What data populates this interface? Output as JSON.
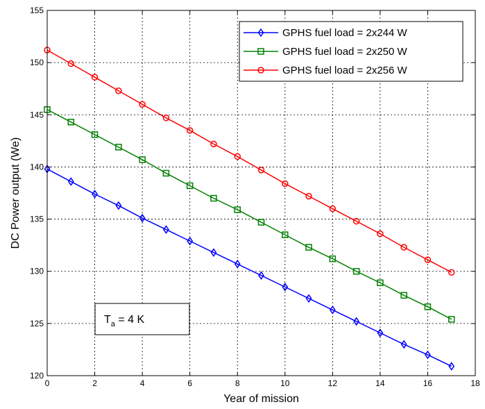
{
  "chart_data": {
    "type": "line",
    "xlabel": "Year of mission",
    "ylabel": "DC Power output (We)",
    "xlim": [
      0,
      18
    ],
    "ylim": [
      120,
      155
    ],
    "xticks": [
      0,
      2,
      4,
      6,
      8,
      10,
      12,
      14,
      16,
      18
    ],
    "yticks": [
      120,
      125,
      130,
      135,
      140,
      145,
      150,
      155
    ],
    "grid": true,
    "legend_position": "top-right",
    "x": [
      0,
      1,
      2,
      3,
      4,
      5,
      6,
      7,
      8,
      9,
      10,
      11,
      12,
      13,
      14,
      15,
      16,
      17
    ],
    "series": [
      {
        "name": "GPHS fuel load = 2x244 W",
        "color": "#0000ff",
        "marker": "diamond",
        "values": [
          139.8,
          138.6,
          137.4,
          136.3,
          135.1,
          134.0,
          132.9,
          131.8,
          130.7,
          129.6,
          128.5,
          127.4,
          126.3,
          125.2,
          124.1,
          123.0,
          122.0,
          120.9
        ]
      },
      {
        "name": "GPHS fuel load = 2x250 W",
        "color": "#008000",
        "marker": "square",
        "values": [
          145.5,
          144.3,
          143.1,
          141.9,
          140.7,
          139.4,
          138.2,
          137.0,
          135.9,
          134.7,
          133.5,
          132.3,
          131.2,
          130.0,
          128.9,
          127.7,
          126.6,
          125.4
        ]
      },
      {
        "name": "GPHS fuel load = 2x256 W",
        "color": "#ff0000",
        "marker": "circle",
        "values": [
          151.2,
          149.9,
          148.6,
          147.3,
          146.0,
          144.7,
          143.5,
          142.2,
          141.0,
          139.7,
          138.4,
          137.2,
          136.0,
          134.8,
          133.6,
          132.3,
          131.1,
          129.9
        ]
      }
    ],
    "annotation": {
      "main": "T",
      "sub": "a",
      "rest": " = 4 K"
    }
  }
}
